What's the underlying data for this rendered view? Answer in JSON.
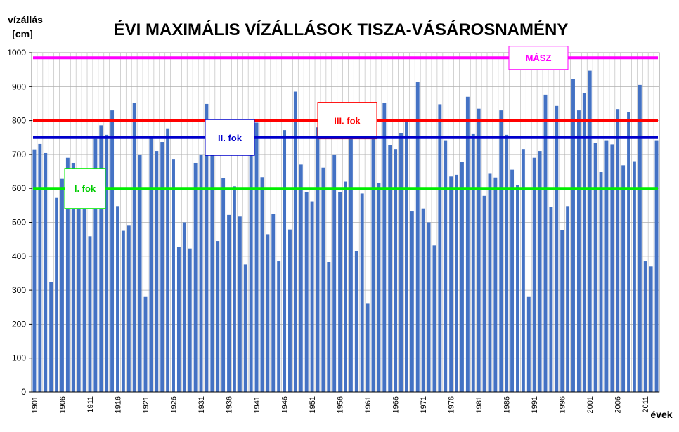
{
  "chart_data": {
    "type": "bar",
    "title": "ÉVI MAXIMÁLIS VÍZÁLLÁSOK  TISZA-VÁSÁROSNAMÉNY",
    "ylabel_line1": "vízállás",
    "ylabel_line2": "[cm]",
    "xlabel": "évek",
    "ylim": [
      0,
      1000
    ],
    "yticks": [
      0,
      100,
      200,
      300,
      400,
      500,
      600,
      700,
      800,
      900,
      1000
    ],
    "grid": true,
    "x_start": 1901,
    "x_end": 2013,
    "xtick_labels": [
      "1901",
      "1906",
      "1911",
      "1916",
      "1921",
      "1926",
      "1931",
      "1936",
      "1941",
      "1946",
      "1951",
      "1956",
      "1961",
      "1966",
      "1971",
      "1976",
      "1981",
      "1986",
      "1991",
      "1996",
      "2001",
      "2006",
      "2011"
    ],
    "bar_color": "#4472c4",
    "values": [
      715,
      731,
      704,
      324,
      572,
      628,
      690,
      675,
      640,
      549,
      459,
      746,
      786,
      758,
      830,
      548,
      475,
      490,
      852,
      700,
      280,
      755,
      710,
      737,
      777,
      685,
      428,
      500,
      423,
      675,
      700,
      849,
      720,
      445,
      630,
      522,
      606,
      517,
      376,
      790,
      794,
      633,
      465,
      524,
      385,
      772,
      479,
      885,
      670,
      590,
      562,
      780,
      661,
      383,
      700,
      590,
      620,
      780,
      415,
      585,
      260,
      780,
      617,
      852,
      728,
      716,
      762,
      795,
      532,
      913,
      541,
      500,
      432,
      848,
      740,
      635,
      640,
      677,
      870,
      760,
      835,
      578,
      645,
      632,
      830,
      758,
      655,
      610,
      716,
      280,
      690,
      710,
      876,
      545,
      843,
      478,
      548,
      923,
      830,
      881,
      947,
      734,
      648,
      740,
      730,
      834,
      668,
      825,
      680,
      905,
      385,
      370,
      740
    ],
    "reference_lines": [
      {
        "label": "MÁSZ",
        "value": 985,
        "color": "#ff00ff",
        "text_color": "#ff00ff"
      },
      {
        "label": "III. fok",
        "value": 800,
        "color": "#ff0000",
        "text_color": "#ff0000"
      },
      {
        "label": "II. fok",
        "value": 750,
        "color": "#0000cc",
        "text_color": "#0000cc"
      },
      {
        "label": "I. fok",
        "value": 600,
        "color": "#00ee00",
        "text_color": "#00cc00"
      }
    ]
  }
}
